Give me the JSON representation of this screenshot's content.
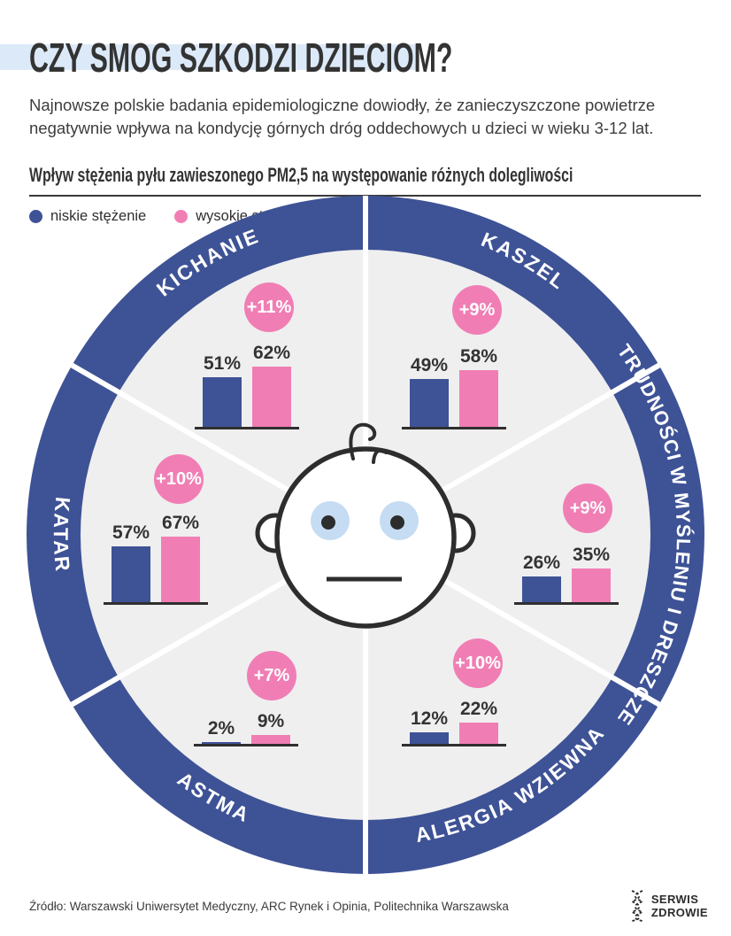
{
  "header": {
    "title": "CZY SMOG SZKODZI DZIECIOM?",
    "intro": "Najnowsze polskie badania epidemiologiczne dowiodły, że zanieczyszczone powietrze negatywnie wpływa na kondycję górnych dróg oddechowych u dzieci w wieku 3-12 lat."
  },
  "chart_data": {
    "type": "bar",
    "title": "Wpływ stężenia pyłu zawieszonego PM2,5 na występowanie różnych dolegliwości",
    "unit": "%",
    "legend": [
      {
        "label": "niskie stężenie",
        "color": "#3e5296"
      },
      {
        "label": "wysokie stężenie",
        "color": "#f07eb4"
      }
    ],
    "layout": "circular, 6 segments with ring labels, paired bars per segment",
    "charts": [
      {
        "id": "kichanie",
        "label": "KICHANIE",
        "low": 51,
        "high": 62,
        "diff": "+11%"
      },
      {
        "id": "kaszel",
        "label": "KASZEL",
        "low": 49,
        "high": 58,
        "diff": "+9%"
      },
      {
        "id": "trudnosci",
        "label": "TRUDNOŚCI W MYŚLENIU I DRESZCZE",
        "low": 26,
        "high": 35,
        "diff": "+9%"
      },
      {
        "id": "alergia",
        "label": "ALERGIA WZIEWNA",
        "low": 12,
        "high": 22,
        "diff": "+10%"
      },
      {
        "id": "astma",
        "label": "ASTMA",
        "low": 2,
        "high": 9,
        "diff": "+7%"
      },
      {
        "id": "katar",
        "label": "KATAR",
        "low": 57,
        "high": 67,
        "diff": "+10%"
      }
    ],
    "ylim": [
      0,
      100
    ]
  },
  "colors": {
    "ring_blue": "#3e5296",
    "bar_low": "#3e5296",
    "bar_high": "#f07eb4",
    "inner_gray": "#efefef",
    "title_highlight": "#dce9f8",
    "eye_blue": "#c5dcf3",
    "ink": "#2d2d2d"
  },
  "footer": {
    "source": "Źródło: Warszawski Uniwersytet Medyczny, ARC Rynek i Opinia, Politechnika Warszawska",
    "logo_line1": "SERWIS",
    "logo_line2": "ZDROWIE"
  }
}
